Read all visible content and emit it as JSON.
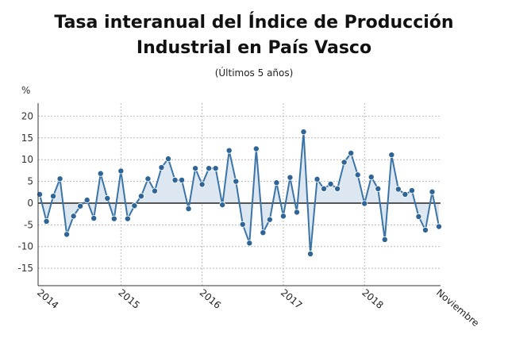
{
  "title_line1": "Tasa interanual del Índice de Producción",
  "title_line2": "Industrial en País Vasco",
  "subtitle": "(Últimos 5 años)",
  "colors": {
    "line": "#3b74a6",
    "marker": "#2e6596",
    "fill": "#dde7f1",
    "zero": "#222222",
    "grid": "#bbbbbb"
  },
  "chart_data": {
    "type": "area",
    "title": "Tasa interanual del Índice de Producción Industrial en País Vasco",
    "subtitle": "(Últimos 5 años)",
    "ylabel": "%",
    "ylim": [
      -19,
      23
    ],
    "yticks": [
      20,
      15,
      10,
      5,
      0,
      -5,
      -10,
      -15
    ],
    "grid": true,
    "xtick_labels": [
      {
        "label": "2014",
        "index": 0
      },
      {
        "label": "2015",
        "index": 12
      },
      {
        "label": "2016",
        "index": 24
      },
      {
        "label": "2017",
        "index": 36
      },
      {
        "label": "2018",
        "index": 48
      },
      {
        "label": "Noviembre",
        "index": 59
      }
    ],
    "values": [
      2.0,
      -4.2,
      1.6,
      5.6,
      -7.2,
      -3.0,
      -0.7,
      0.7,
      -3.5,
      6.8,
      1.1,
      -3.6,
      7.4,
      -3.6,
      -0.6,
      1.6,
      5.6,
      2.8,
      8.2,
      10.2,
      5.3,
      5.3,
      -1.3,
      8.0,
      4.3,
      8.0,
      8.0,
      -0.4,
      12.1,
      5.0,
      -4.9,
      -9.2,
      12.5,
      -6.8,
      -3.8,
      4.7,
      -3.0,
      5.9,
      -2.1,
      16.4,
      -11.7,
      5.5,
      3.3,
      4.4,
      3.3,
      9.4,
      11.5,
      6.5,
      -0.1,
      6.0,
      3.3,
      -8.4,
      11.1,
      3.2,
      2.0,
      2.9,
      -3.1,
      -6.2,
      2.6,
      -5.4
    ]
  }
}
